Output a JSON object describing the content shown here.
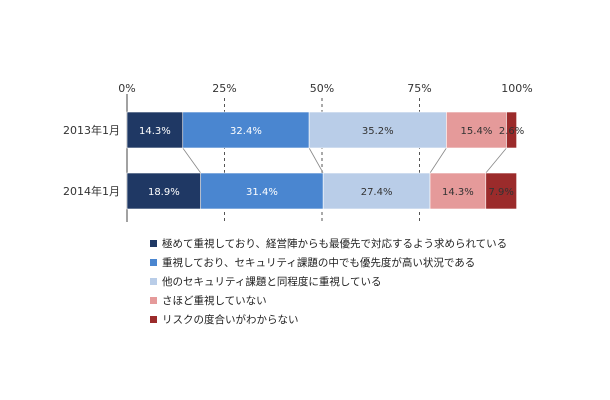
{
  "chart_data": {
    "type": "bar",
    "stacked": "percent",
    "orientation": "horizontal",
    "categories": [
      "2013年1月",
      "2014年1月"
    ],
    "series": [
      {
        "name": "極めて重視しており、経営陣からも最優先で対応するよう求められている",
        "values": [
          14.3,
          18.9
        ],
        "color": "#1f3864",
        "label_color": "#ffffff"
      },
      {
        "name": "重視しており、セキュリティ課題の中でも優先度が高い状況である",
        "values": [
          32.4,
          31.4
        ],
        "color": "#4a86d0",
        "label_color": "#ffffff"
      },
      {
        "name": "他のセキュリティ課題と同程度に重視している",
        "values": [
          35.2,
          27.4
        ],
        "color": "#b9cde8",
        "label_color": "#333333"
      },
      {
        "name": "さほど重視していない",
        "values": [
          15.4,
          14.3
        ],
        "color": "#e59a9a",
        "label_color": "#333333"
      },
      {
        "name": "リスクの度合いがわからない",
        "values": [
          2.6,
          7.9
        ],
        "color": "#9b2b2b",
        "label_color": "#333333"
      }
    ],
    "data_labels": [
      [
        "14.3%",
        "32.4%",
        "35.2%",
        "15.4%",
        "2.6%"
      ],
      [
        "18.9%",
        "31.4%",
        "27.4%",
        "14.3%",
        "7.9%"
      ]
    ],
    "xlim": [
      0,
      100
    ],
    "x_ticks": [
      0,
      25,
      50,
      75,
      100
    ],
    "x_tick_labels": [
      "0%",
      "25%",
      "50%",
      "75%",
      "100%"
    ],
    "grid": "vertical dashed at 25/50/75",
    "series_connectors": true,
    "legend_position": "bottom"
  }
}
